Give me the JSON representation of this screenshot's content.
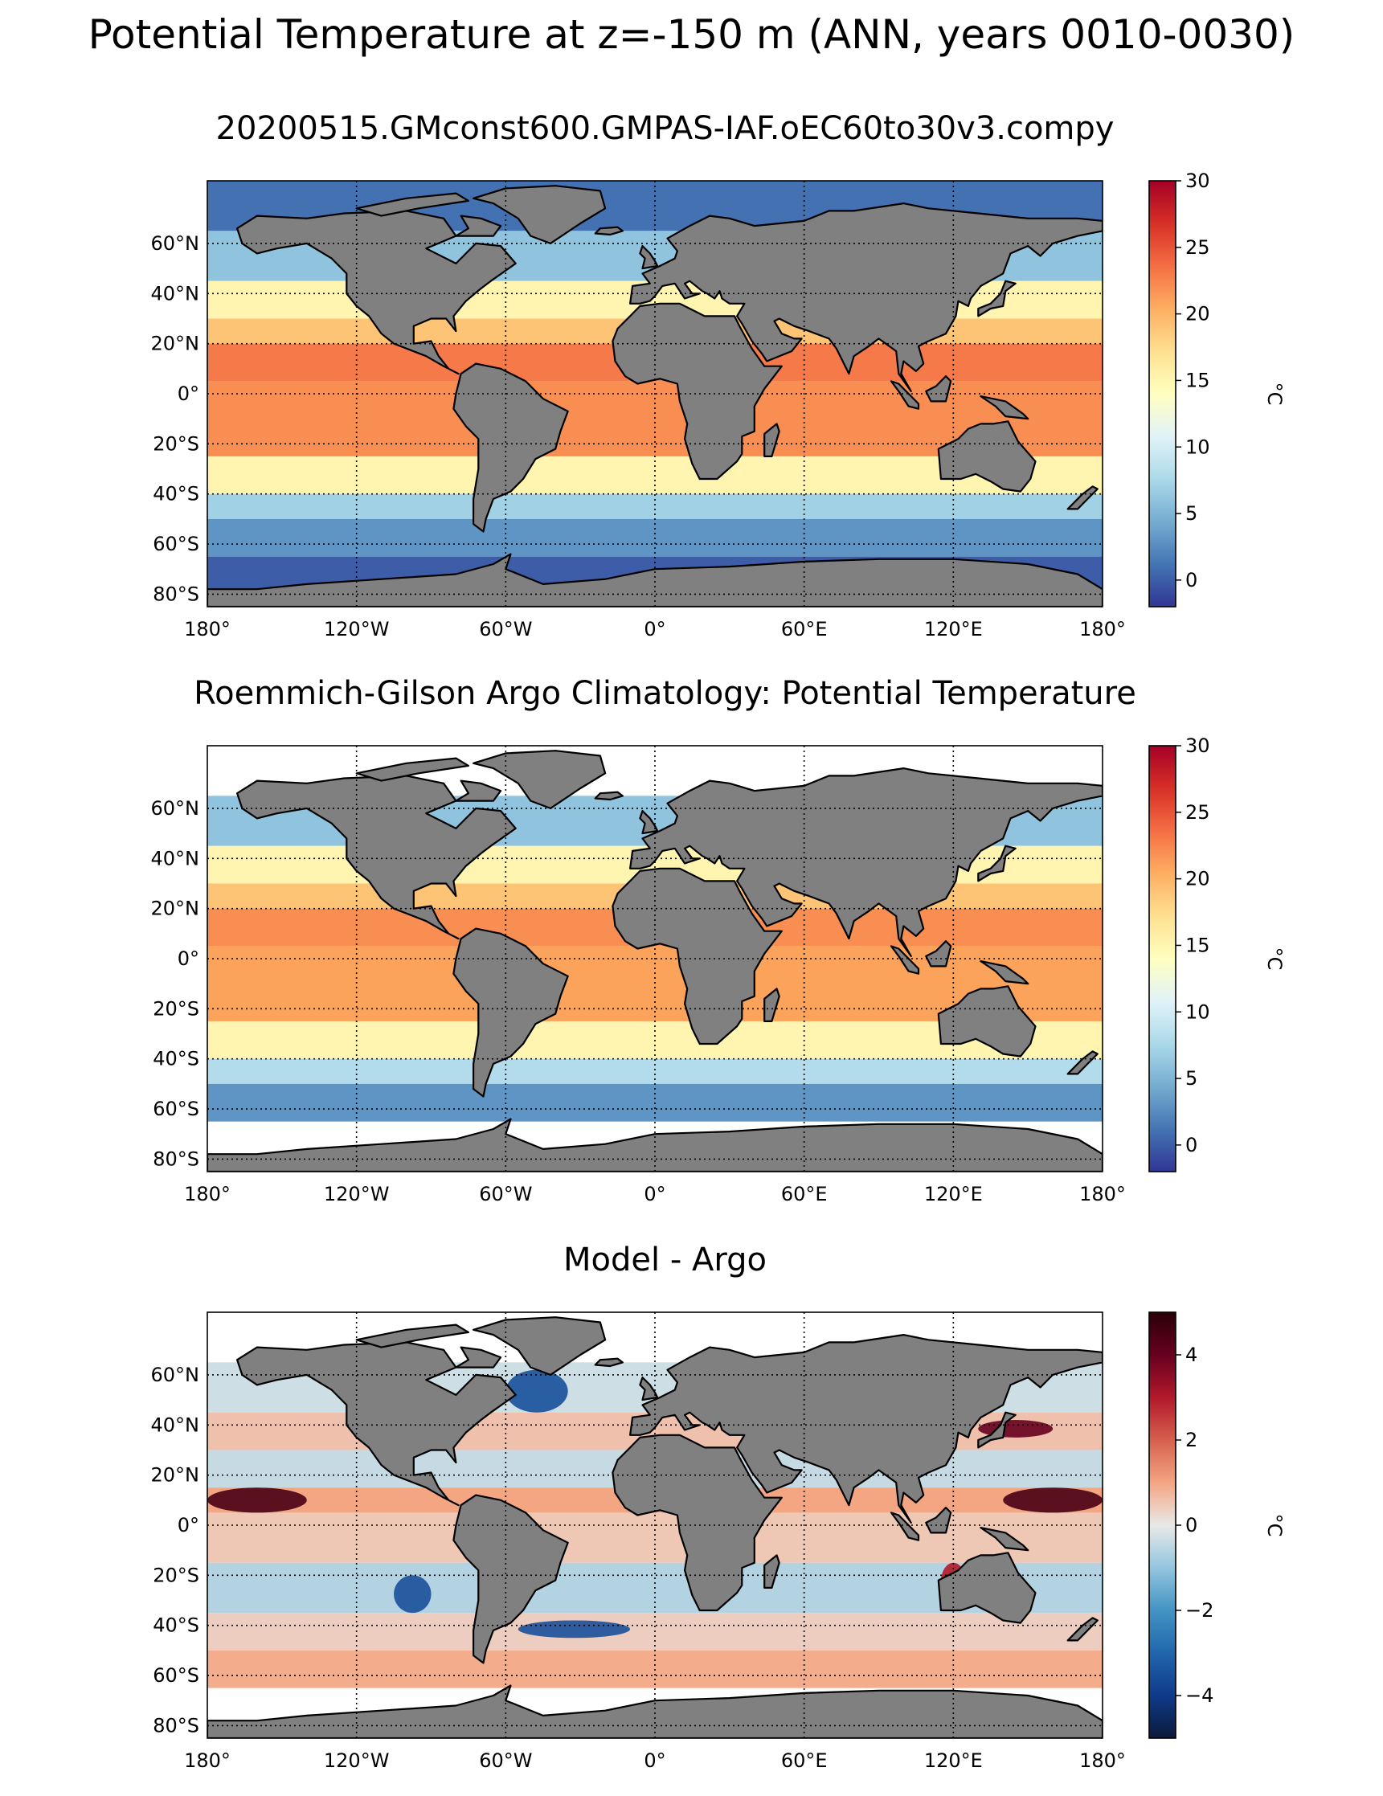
{
  "figure": {
    "suptitle": "Potential Temperature at z=-150 m (ANN, years 0010-0030)"
  },
  "chart_data": [
    {
      "type": "heatmap",
      "title": "20200515.GMconst600.GMPAS-IAF.oEC60to30v3.compy",
      "colormap": "RdYlBu_r",
      "colorbar_label": "°C",
      "clim": [
        -2,
        30
      ],
      "colorbar_ticks": [
        {
          "v": 30,
          "label": "30"
        },
        {
          "v": 25,
          "label": "25"
        },
        {
          "v": 20,
          "label": "20"
        },
        {
          "v": 15,
          "label": "15"
        },
        {
          "v": 10,
          "label": "10"
        },
        {
          "v": 5,
          "label": "5"
        },
        {
          "v": 0,
          "label": "0"
        }
      ],
      "x_ticks": [
        {
          "v": -180,
          "label": "180°"
        },
        {
          "v": -120,
          "label": "120°W"
        },
        {
          "v": -60,
          "label": "60°W"
        },
        {
          "v": 0,
          "label": "0°"
        },
        {
          "v": 60,
          "label": "60°E"
        },
        {
          "v": 120,
          "label": "120°E"
        },
        {
          "v": 180,
          "label": "180°"
        }
      ],
      "y_ticks": [
        {
          "v": 60,
          "label": "60°N"
        },
        {
          "v": 40,
          "label": "40°N"
        },
        {
          "v": 20,
          "label": "20°N"
        },
        {
          "v": 0,
          "label": "0°"
        },
        {
          "v": -20,
          "label": "20°S"
        },
        {
          "v": -40,
          "label": "40°S"
        },
        {
          "v": -60,
          "label": "60°S"
        },
        {
          "v": -80,
          "label": "80°S"
        }
      ],
      "xlim": [
        -180,
        180
      ],
      "ylim": [
        -85,
        85
      ],
      "lat_bands": [
        {
          "lat_range": [
            85,
            65
          ],
          "value": 1
        },
        {
          "lat_range": [
            65,
            45
          ],
          "value": 6
        },
        {
          "lat_range": [
            45,
            30
          ],
          "value": 15
        },
        {
          "lat_range": [
            30,
            20
          ],
          "value": 19
        },
        {
          "lat_range": [
            20,
            5
          ],
          "value": 23
        },
        {
          "lat_range": [
            5,
            -25
          ],
          "value": 22
        },
        {
          "lat_range": [
            -25,
            -40
          ],
          "value": 15
        },
        {
          "lat_range": [
            -40,
            -50
          ],
          "value": 7
        },
        {
          "lat_range": [
            -50,
            -65
          ],
          "value": 3
        },
        {
          "lat_range": [
            -65,
            -85
          ],
          "value": 0
        }
      ]
    },
    {
      "type": "heatmap",
      "title": "Roemmich-Gilson Argo Climatology: Potential Temperature",
      "colormap": "RdYlBu_r",
      "colorbar_label": "°C",
      "clim": [
        -2,
        30
      ],
      "colorbar_ticks": [
        {
          "v": 30,
          "label": "30"
        },
        {
          "v": 25,
          "label": "25"
        },
        {
          "v": 20,
          "label": "20"
        },
        {
          "v": 15,
          "label": "15"
        },
        {
          "v": 10,
          "label": "10"
        },
        {
          "v": 5,
          "label": "5"
        },
        {
          "v": 0,
          "label": "0"
        }
      ],
      "x_ticks": [
        {
          "v": -180,
          "label": "180°"
        },
        {
          "v": -120,
          "label": "120°W"
        },
        {
          "v": -60,
          "label": "60°W"
        },
        {
          "v": 0,
          "label": "0°"
        },
        {
          "v": 60,
          "label": "60°E"
        },
        {
          "v": 120,
          "label": "120°E"
        },
        {
          "v": 180,
          "label": "180°"
        }
      ],
      "y_ticks": [
        {
          "v": 60,
          "label": "60°N"
        },
        {
          "v": 40,
          "label": "40°N"
        },
        {
          "v": 20,
          "label": "20°N"
        },
        {
          "v": 0,
          "label": "0°"
        },
        {
          "v": -20,
          "label": "20°S"
        },
        {
          "v": -40,
          "label": "40°S"
        },
        {
          "v": -60,
          "label": "60°S"
        },
        {
          "v": -80,
          "label": "80°S"
        }
      ],
      "xlim": [
        -180,
        180
      ],
      "ylim": [
        -85,
        85
      ],
      "lat_bands": [
        {
          "lat_range": [
            65,
            45
          ],
          "value": 6
        },
        {
          "lat_range": [
            45,
            30
          ],
          "value": 15
        },
        {
          "lat_range": [
            30,
            20
          ],
          "value": 19
        },
        {
          "lat_range": [
            20,
            5
          ],
          "value": 22
        },
        {
          "lat_range": [
            5,
            -25
          ],
          "value": 21
        },
        {
          "lat_range": [
            -25,
            -40
          ],
          "value": 15
        },
        {
          "lat_range": [
            -40,
            -50
          ],
          "value": 8
        },
        {
          "lat_range": [
            -50,
            -65
          ],
          "value": 3
        }
      ]
    },
    {
      "type": "heatmap",
      "title": "Model - Argo",
      "colormap": "RdBu_r",
      "colorbar_label": "°C",
      "clim": [
        -5,
        5
      ],
      "colorbar_ticks": [
        {
          "v": 4,
          "label": "4"
        },
        {
          "v": 2,
          "label": "2"
        },
        {
          "v": 0,
          "label": "0"
        },
        {
          "v": -2,
          "label": "−2"
        },
        {
          "v": -4,
          "label": "−4"
        }
      ],
      "x_ticks": [
        {
          "v": -180,
          "label": "180°"
        },
        {
          "v": -120,
          "label": "120°W"
        },
        {
          "v": -60,
          "label": "60°W"
        },
        {
          "v": 0,
          "label": "0°"
        },
        {
          "v": 60,
          "label": "60°E"
        },
        {
          "v": 120,
          "label": "120°E"
        },
        {
          "v": 180,
          "label": "180°"
        }
      ],
      "y_ticks": [
        {
          "v": 60,
          "label": "60°N"
        },
        {
          "v": 40,
          "label": "40°N"
        },
        {
          "v": 20,
          "label": "20°N"
        },
        {
          "v": 0,
          "label": "0°"
        },
        {
          "v": -20,
          "label": "20°S"
        },
        {
          "v": -40,
          "label": "40°S"
        },
        {
          "v": -60,
          "label": "60°S"
        },
        {
          "v": -80,
          "label": "80°S"
        }
      ],
      "xlim": [
        -180,
        180
      ],
      "ylim": [
        -85,
        85
      ],
      "lat_bands": [
        {
          "lat_range": [
            65,
            45
          ],
          "value": -0.3
        },
        {
          "lat_range": [
            45,
            30
          ],
          "value": 0.6
        },
        {
          "lat_range": [
            30,
            15
          ],
          "value": -0.4
        },
        {
          "lat_range": [
            15,
            5
          ],
          "value": 1.0
        },
        {
          "lat_range": [
            5,
            -15
          ],
          "value": 0.5
        },
        {
          "lat_range": [
            -15,
            -35
          ],
          "value": -0.6
        },
        {
          "lat_range": [
            -35,
            -50
          ],
          "value": 0.4
        },
        {
          "lat_range": [
            -50,
            -65
          ],
          "value": 0.9
        }
      ],
      "features": [
        {
          "name": "North Pacific warm band",
          "lon": [
            -180,
            -140
          ],
          "lat": [
            15,
            5
          ],
          "value": 4.5
        },
        {
          "name": "Kuroshio warm anomaly",
          "lon": [
            130,
            160
          ],
          "lat": [
            42,
            35
          ],
          "value": 4
        },
        {
          "name": "Tropical western Pacific warm band",
          "lon": [
            140,
            180
          ],
          "lat": [
            15,
            5
          ],
          "value": 4.5
        },
        {
          "name": "Labrador Sea cold anomaly",
          "lon": [
            -60,
            -35
          ],
          "lat": [
            62,
            45
          ],
          "value": -3.5
        },
        {
          "name": "South Pacific cold anomaly",
          "lon": [
            -105,
            -90
          ],
          "lat": [
            -20,
            -35
          ],
          "value": -3.5
        },
        {
          "name": "South Atlantic cold streaks",
          "lon": [
            -55,
            -10
          ],
          "lat": [
            -38,
            -45
          ],
          "value": -3.5
        },
        {
          "name": "Indonesian warm anomaly",
          "lon": [
            115,
            125
          ],
          "lat": [
            -15,
            -30
          ],
          "value": 3
        }
      ]
    }
  ]
}
